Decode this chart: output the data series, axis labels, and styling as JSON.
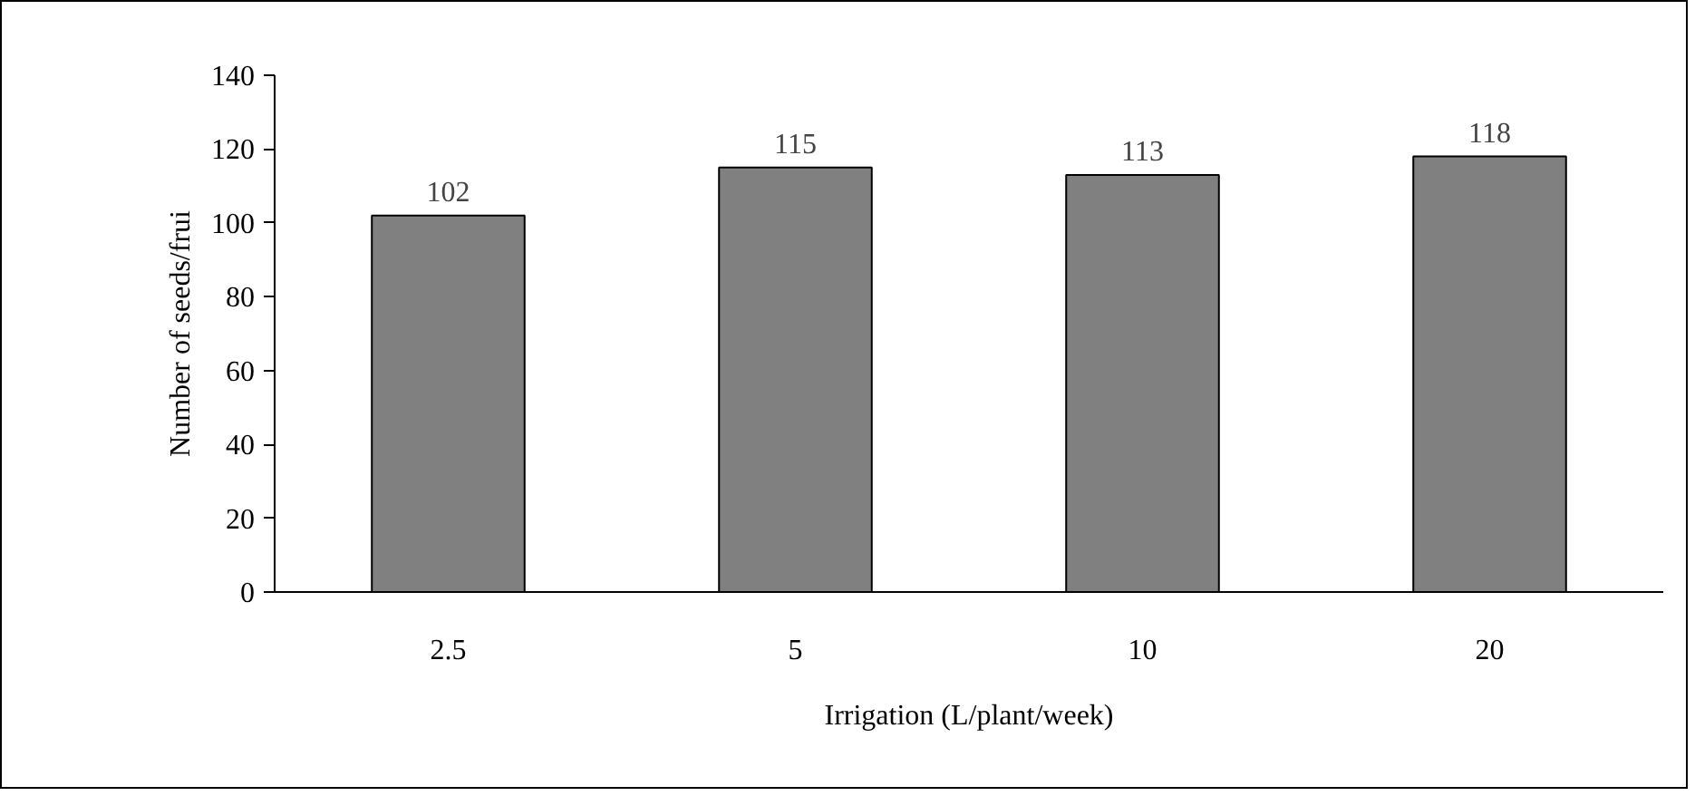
{
  "chart_data": {
    "type": "bar",
    "categories": [
      "2.5",
      "5",
      "10",
      "20"
    ],
    "values": [
      102,
      115,
      113,
      118
    ],
    "color": "#808080",
    "xlabel": "Irrigation (L/plant/week)",
    "ylabel": "Number of seeds/frui",
    "ylim": [
      0,
      140
    ],
    "yticks": [
      0,
      20,
      40,
      60,
      80,
      100,
      120,
      140
    ],
    "data_labels": true,
    "grid": false
  }
}
